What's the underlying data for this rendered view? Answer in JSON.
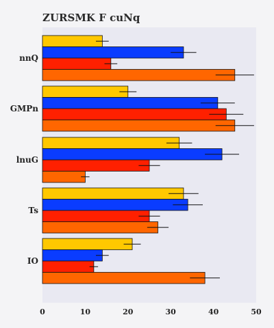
{
  "chart_data": {
    "type": "bar",
    "orientation": "horizontal",
    "title": "ZURSMK F cuNq",
    "xlabel": "",
    "ylabel": "",
    "categories": [
      "nnQ",
      "GMPn",
      "lnuG",
      "Ts",
      "IO"
    ],
    "xlim": [
      0,
      50
    ],
    "xticks": [
      0,
      10,
      20,
      30,
      40,
      50
    ],
    "grid": false,
    "legend": "none",
    "series": [
      {
        "color": "#ffc800",
        "values": [
          14,
          20,
          32,
          33,
          21
        ],
        "errors": [
          1.5,
          2,
          3,
          3.5,
          2
        ]
      },
      {
        "color": "#0a3cff",
        "values": [
          33,
          41,
          42,
          34,
          14
        ],
        "errors": [
          3,
          4,
          4,
          3.5,
          1.5
        ]
      },
      {
        "color": "#ff2000",
        "values": [
          16,
          43,
          25,
          25,
          12
        ],
        "errors": [
          1.5,
          4,
          2.5,
          2.5,
          1
        ]
      },
      {
        "color": "#ff6600",
        "values": [
          45,
          45,
          10,
          27,
          38
        ],
        "errors": [
          4.5,
          4.5,
          1,
          2.5,
          3.5
        ]
      }
    ],
    "plot_background": "#e9e9f2"
  }
}
